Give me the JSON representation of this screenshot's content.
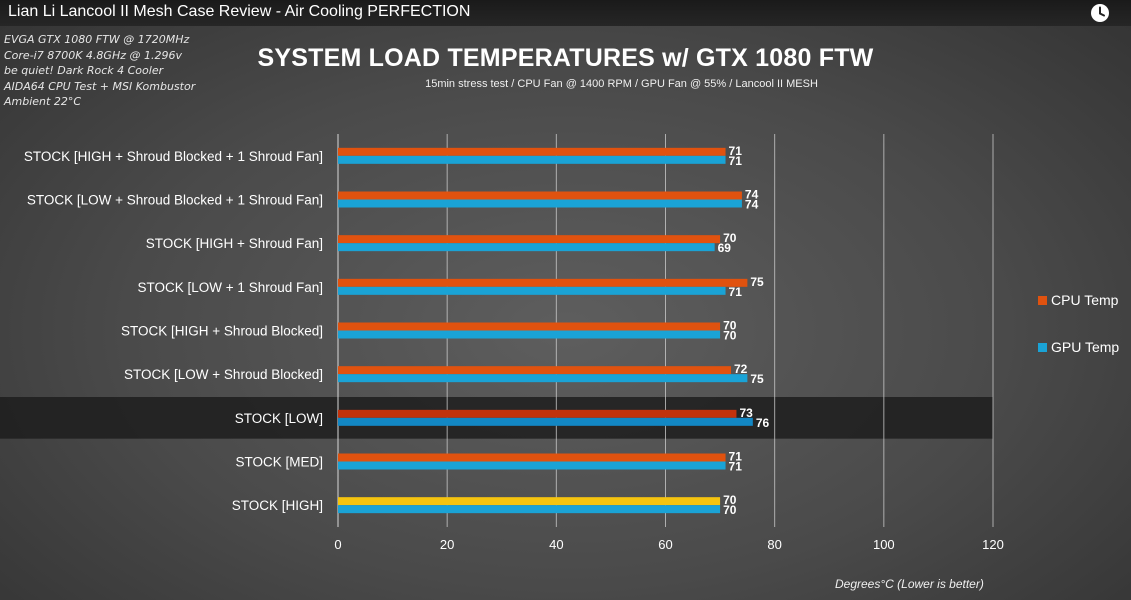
{
  "video": {
    "title": "Lian Li Lancool II Mesh Case Review - Air Cooling PERFECTION"
  },
  "specs": [
    "EVGA GTX 1080 FTW @ 1720MHz",
    "Core-i7 8700K 4.8GHz @ 1.296v",
    "be quiet! Dark Rock 4 Cooler",
    "AIDA64 CPU Test + MSI Kombustor",
    "Ambient 22°C"
  ],
  "chart_data": {
    "type": "bar",
    "orientation": "horizontal",
    "title": "SYSTEM LOAD TEMPERATURES w/ GTX 1080 FTW",
    "subtitle": "15min stress test / CPU Fan @ 1400 RPM / GPU Fan @ 55% / Lancool II MESH",
    "xlabel": "Degrees°C (Lower is better)",
    "ylabel": "",
    "xlim": [
      0,
      120
    ],
    "x_ticks": [
      0,
      20,
      40,
      60,
      80,
      100,
      120
    ],
    "grid": "vertical",
    "legend_position": "right",
    "highlighted_category": "STOCK [LOW]",
    "categories": [
      "STOCK [HIGH + Shroud Blocked + 1 Shroud Fan]",
      "STOCK [LOW + Shroud Blocked + 1 Shroud Fan]",
      "STOCK [HIGH + Shroud Fan]",
      "STOCK [LOW + 1 Shroud Fan]",
      "STOCK [HIGH + Shroud Blocked]",
      "STOCK [LOW + Shroud Blocked]",
      "STOCK [LOW]",
      "STOCK [MED]",
      "STOCK [HIGH]"
    ],
    "series": [
      {
        "name": "CPU Temp",
        "color": "#e0520f",
        "values": [
          71,
          74,
          70,
          75,
          70,
          72,
          73,
          71,
          70
        ]
      },
      {
        "name": "GPU Temp",
        "color": "#1aa3d6",
        "values": [
          71,
          74,
          69,
          71,
          70,
          75,
          76,
          71,
          70
        ]
      }
    ],
    "bar_color_overrides": {
      "STOCK [LOW]": {
        "CPU Temp": "#c2320c",
        "GPU Temp": "#1287c4"
      },
      "STOCK [HIGH]": {
        "CPU Temp": "#f5c40f"
      }
    }
  }
}
